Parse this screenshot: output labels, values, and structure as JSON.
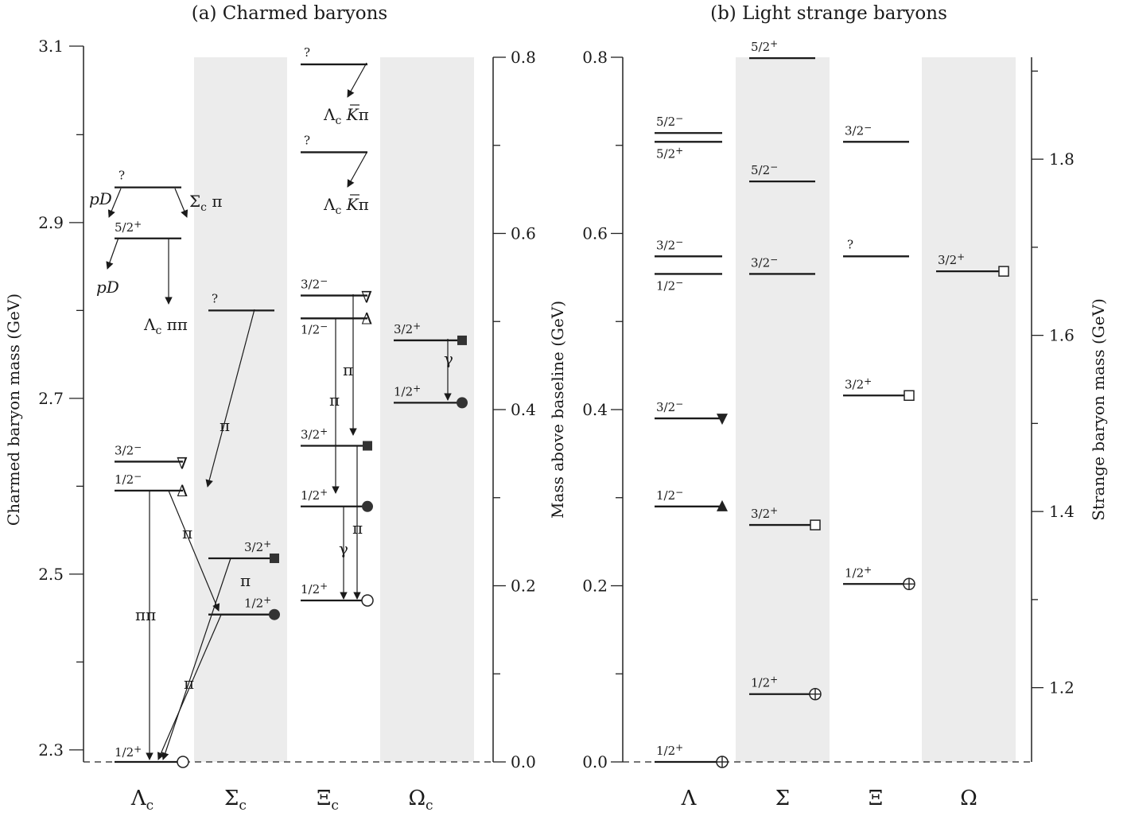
{
  "titles": {
    "left": "(a) Charmed baryons",
    "right": "(b) Light strange baryons"
  },
  "axes": {
    "left_y_label": "Charmed baryon mass   (GeV)",
    "middle_y_label": "Mass above baseline   (GeV)",
    "right_y_label": "Strange baryon mass   (GeV)",
    "left_ticks": [
      "2.3",
      "2.5",
      "2.7",
      "2.9",
      "3.1"
    ],
    "mid_ticks_a": [
      "0.0",
      "0.2",
      "0.4",
      "0.6",
      "0.8"
    ],
    "mid_ticks_b": [
      "0.0",
      "0.2",
      "0.4",
      "0.6",
      "0.8"
    ],
    "right_ticks": [
      "1.2",
      "1.4",
      "1.6",
      "1.8"
    ]
  },
  "columns": {
    "a": [
      "Λ",
      "Σ",
      "Ξ",
      "Ω"
    ],
    "a_sub": "c",
    "b": [
      "Λ",
      "Σ",
      "Ξ",
      "Ω"
    ]
  },
  "decays": {
    "pd": "pD",
    "sigma_c_pi_1": "Σ",
    "sigma_c_pi_2": "c",
    "sigma_c_pi_3": "π",
    "lc_pipi_1": "Λ",
    "lc_pipi_2": "c",
    "lc_pipi_3": "ππ",
    "lc_kpi_1": "Λ",
    "lc_kpi_2": "c",
    "lc_kpi_3": "K",
    "lc_kpi_4": "π",
    "pi": "π",
    "pipi": "ππ",
    "gamma": "γ",
    "delta": "Δ",
    "nabla": "∇",
    "question": "?"
  },
  "chart_data": [
    {
      "type": "diagram",
      "title": "(a) Charmed baryons",
      "ylabel": "Charmed baryon mass   (GeV)",
      "ylim": [
        2.28,
        3.1
      ],
      "columns": [
        {
          "name": "Λc",
          "levels": [
            {
              "mass": 2.286,
              "jp": "1/2+",
              "marker": "open-circle"
            },
            {
              "mass": 2.595,
              "jp": "1/2−",
              "marker": "Δ"
            },
            {
              "mass": 2.628,
              "jp": "3/2−",
              "marker": "∇"
            },
            {
              "mass": 2.882,
              "jp": "5/2+"
            },
            {
              "mass": 2.94,
              "jp": "?"
            }
          ]
        },
        {
          "name": "Σc",
          "levels": [
            {
              "mass": 2.454,
              "jp": "1/2+",
              "marker": "filled-circle"
            },
            {
              "mass": 2.518,
              "jp": "3/2+",
              "marker": "filled-square"
            },
            {
              "mass": 2.8,
              "jp": "?"
            }
          ]
        },
        {
          "name": "Ξc",
          "levels": [
            {
              "mass": 2.47,
              "jp": "1/2+",
              "marker": "open-circle"
            },
            {
              "mass": 2.577,
              "jp": "1/2+",
              "marker": "filled-circle"
            },
            {
              "mass": 2.646,
              "jp": "3/2+",
              "marker": "filled-square"
            },
            {
              "mass": 2.791,
              "jp": "1/2−",
              "marker": "Δ"
            },
            {
              "mass": 2.817,
              "jp": "3/2−",
              "marker": "∇"
            },
            {
              "mass": 2.98,
              "jp": "?"
            },
            {
              "mass": 3.08,
              "jp": "?"
            }
          ]
        },
        {
          "name": "Ωc",
          "levels": [
            {
              "mass": 2.695,
              "jp": "1/2+",
              "marker": "filled-circle"
            },
            {
              "mass": 2.766,
              "jp": "3/2+",
              "marker": "filled-square"
            }
          ]
        }
      ]
    },
    {
      "type": "diagram",
      "title": "(b) Light strange baryons",
      "ylabel": "Strange baryon mass   (GeV)",
      "ylim": [
        1.116,
        1.92
      ],
      "columns": [
        {
          "name": "Λ",
          "levels": [
            {
              "above": 0.0,
              "jp": "1/2+",
              "marker": "circle-plus"
            },
            {
              "above": 0.29,
              "jp": "1/2−",
              "marker": "▲"
            },
            {
              "above": 0.39,
              "jp": "3/2−",
              "marker": "▼"
            },
            {
              "above": 0.554,
              "jp": "1/2−"
            },
            {
              "above": 0.574,
              "jp": "3/2−"
            },
            {
              "above": 0.704,
              "jp": "5/2+"
            },
            {
              "above": 0.714,
              "jp": "5/2−"
            }
          ]
        },
        {
          "name": "Σ",
          "levels": [
            {
              "above": 0.077,
              "jp": "1/2+",
              "marker": "circle-plus"
            },
            {
              "above": 0.269,
              "jp": "3/2+",
              "marker": "open-square"
            },
            {
              "above": 0.554,
              "jp": "3/2−"
            },
            {
              "above": 0.659,
              "jp": "5/2−"
            },
            {
              "above": 0.799,
              "jp": "5/2+"
            }
          ]
        },
        {
          "name": "Ξ",
          "levels": [
            {
              "above": 0.202,
              "jp": "1/2+",
              "marker": "circle-plus"
            },
            {
              "above": 0.416,
              "jp": "3/2+",
              "marker": "open-square"
            },
            {
              "above": 0.574,
              "jp": "?"
            },
            {
              "above": 0.704,
              "jp": "3/2−"
            }
          ]
        },
        {
          "name": "Ω",
          "levels": [
            {
              "above": 0.557,
              "jp": "3/2+",
              "marker": "open-square"
            }
          ]
        }
      ]
    }
  ]
}
